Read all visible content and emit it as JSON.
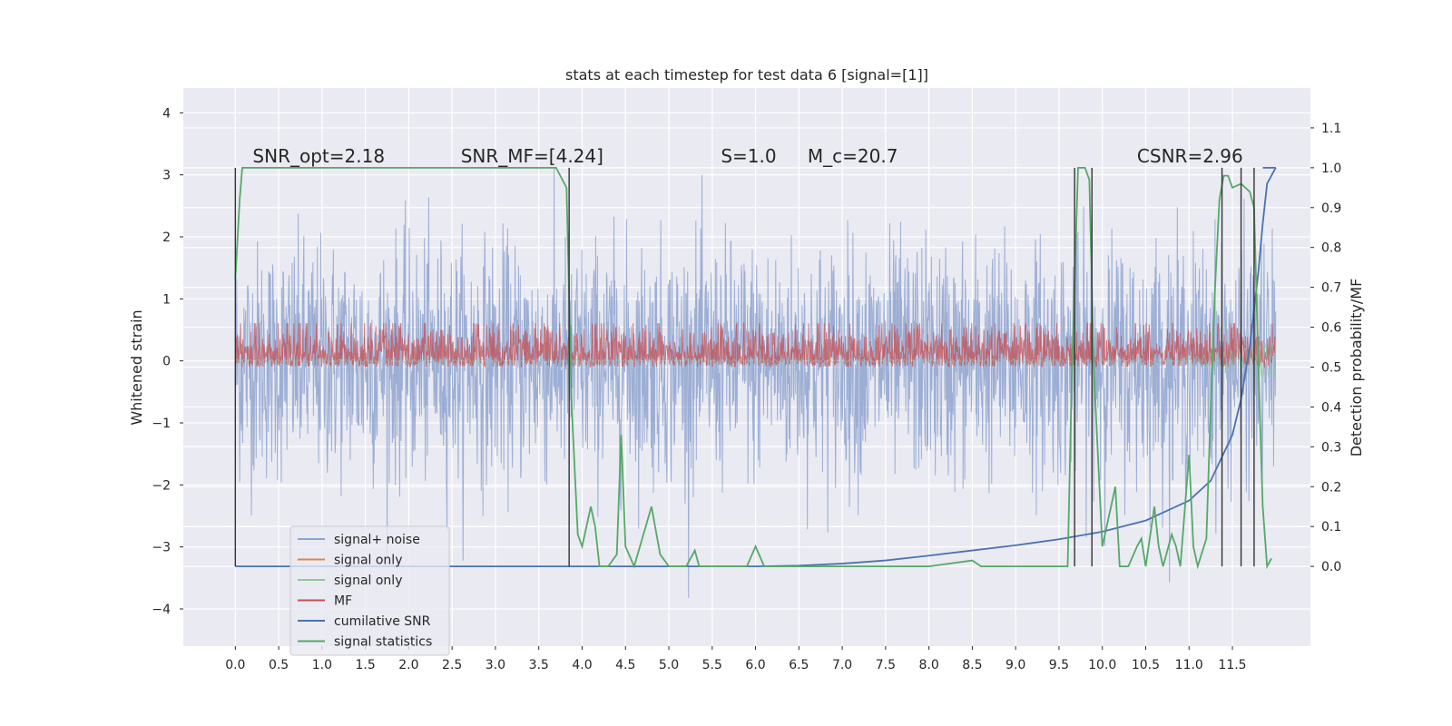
{
  "chart_data": {
    "type": "line",
    "title": "stats at each timestep for test data 6 [signal=[1]]",
    "ylabel": "Whitened strain",
    "ylabel_right": "Detection probability/MF",
    "xlim": [
      -0.6,
      12.4
    ],
    "ylim": [
      -4.6,
      4.4
    ],
    "ylim_right": [
      -0.2,
      1.2
    ],
    "xticks": [
      "0.0",
      "0.5",
      "1.0",
      "1.5",
      "2.0",
      "2.5",
      "3.0",
      "3.5",
      "4.0",
      "4.5",
      "5.0",
      "5.5",
      "6.0",
      "6.5",
      "7.0",
      "7.5",
      "8.0",
      "8.5",
      "9.0",
      "9.5",
      "10.0",
      "10.5",
      "11.0",
      "11.5"
    ],
    "yticks": [
      "4",
      "3",
      "2",
      "1",
      "0",
      "−1",
      "−2",
      "−3",
      "−4"
    ],
    "yticks_right": [
      "1.1",
      "1.0",
      "0.9",
      "0.8",
      "0.7",
      "0.6",
      "0.5",
      "0.4",
      "0.3",
      "0.2",
      "0.1",
      "0.0"
    ],
    "annotations": [
      {
        "text": "SNR_opt=2.18",
        "x": 0.2,
        "y": 3.2
      },
      {
        "text": "SNR_MF=[4.24]",
        "x": 2.6,
        "y": 3.2
      },
      {
        "text": "S=1.0",
        "x": 5.6,
        "y": 3.2
      },
      {
        "text": "M_c=20.7",
        "x": 6.6,
        "y": 3.2
      },
      {
        "text": "CSNR=2.96",
        "x": 10.4,
        "y": 3.2
      }
    ],
    "series": [
      {
        "name": "signal+ noise",
        "color": "#8ea3cf",
        "axis": "left",
        "amplitude": 2.3,
        "note": "noisy band"
      },
      {
        "name": "signal only",
        "color": "#dd8452",
        "axis": "left"
      },
      {
        "name": "signal only",
        "color": "#8fc79a",
        "axis": "left",
        "x": [
          10.8,
          11.0,
          11.2,
          11.4,
          11.5,
          11.6,
          11.7,
          11.8
        ],
        "values": [
          0.05,
          0.08,
          0.12,
          0.18,
          0.25,
          0.35,
          0.45,
          0.3
        ]
      },
      {
        "name": "MF",
        "color": "#c44e52",
        "axis": "right",
        "note": "fluctuating 0.5-0.6"
      },
      {
        "name": "cumilative SNR",
        "color": "#4c72b0",
        "axis": "right",
        "x": [
          0,
          6,
          6.5,
          7,
          7.5,
          8,
          8.5,
          9,
          9.5,
          10,
          10.5,
          11,
          11.25,
          11.5,
          11.6,
          11.7,
          11.8,
          11.85,
          11.9,
          12.0
        ],
        "values": [
          0,
          0,
          0.002,
          0.007,
          0.015,
          0.027,
          0.04,
          0.053,
          0.068,
          0.087,
          0.115,
          0.165,
          0.215,
          0.33,
          0.42,
          0.55,
          0.74,
          0.86,
          0.96,
          1.0
        ]
      },
      {
        "name": "signal statistics",
        "color": "#55a868",
        "axis": "right",
        "x": [
          0,
          0.05,
          0.08,
          0.12,
          0.2,
          0.5,
          1.0,
          2.0,
          3.0,
          3.7,
          3.82,
          3.88,
          3.95,
          4.0,
          4.1,
          4.15,
          4.2,
          4.3,
          4.4,
          4.45,
          4.5,
          4.6,
          4.8,
          4.9,
          5.0,
          5.2,
          5.3,
          5.35,
          5.4,
          5.6,
          5.9,
          6.0,
          6.1,
          7.0,
          8.0,
          8.5,
          8.6,
          8.7,
          9.0,
          9.5,
          9.6,
          9.65,
          9.72,
          9.8,
          9.85,
          9.9,
          10.0,
          10.1,
          10.15,
          10.2,
          10.3,
          10.4,
          10.45,
          10.5,
          10.6,
          10.65,
          10.7,
          10.8,
          10.85,
          10.9,
          11.0,
          11.05,
          11.1,
          11.2,
          11.25,
          11.3,
          11.35,
          11.4,
          11.45,
          11.5,
          11.6,
          11.7,
          11.75,
          11.8,
          11.85,
          11.9,
          11.95
        ],
        "values": [
          0.72,
          0.92,
          1.0,
          1.0,
          1.0,
          1.0,
          1.0,
          1.0,
          1.0,
          1.0,
          0.95,
          0.4,
          0.08,
          0.05,
          0.15,
          0.1,
          0.0,
          0.0,
          0.03,
          0.33,
          0.05,
          0.0,
          0.15,
          0.03,
          0.0,
          0.0,
          0.04,
          0.0,
          0.0,
          0.0,
          0.0,
          0.05,
          0.0,
          0.0,
          0.0,
          0.015,
          0.0,
          0.0,
          0.0,
          0.0,
          0.0,
          0.5,
          1.0,
          1.0,
          0.97,
          0.5,
          0.05,
          0.15,
          0.2,
          0.0,
          0.0,
          0.05,
          0.07,
          0.0,
          0.15,
          0.05,
          0.0,
          0.08,
          0.05,
          0.0,
          0.28,
          0.05,
          0.0,
          0.07,
          0.4,
          0.7,
          0.92,
          0.98,
          0.98,
          0.95,
          0.96,
          0.94,
          0.9,
          0.5,
          0.15,
          0.0,
          0.02
        ]
      }
    ],
    "vlines": [
      0.0,
      3.85,
      9.68,
      9.88,
      11.38,
      11.6,
      11.75
    ],
    "legend": "lower-left",
    "grid": true
  }
}
